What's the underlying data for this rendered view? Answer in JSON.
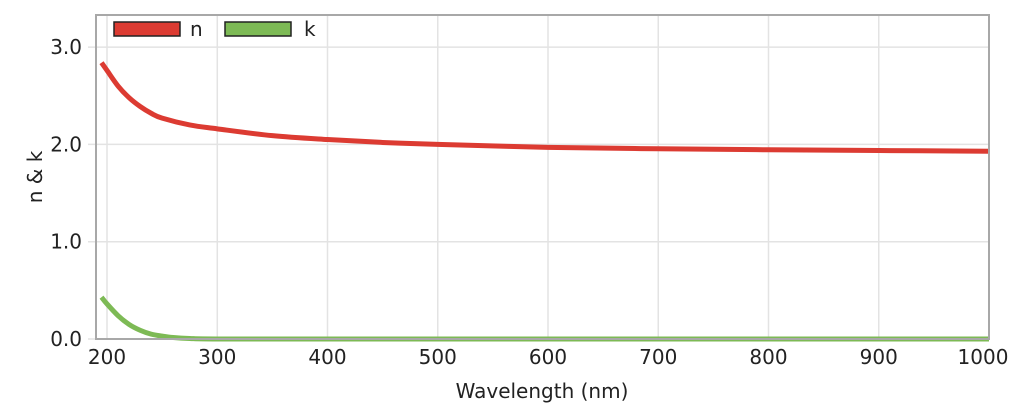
{
  "chart_data": {
    "type": "line",
    "title": "",
    "xlabel": "Wavelength (nm)",
    "ylabel": "n & k",
    "xlim": [
      190,
      1000
    ],
    "ylim": [
      0,
      3.33
    ],
    "xticks": [
      200,
      300,
      400,
      500,
      600,
      700,
      800,
      900,
      1000
    ],
    "xtick_labels": [
      "200",
      "300",
      "400",
      "500",
      "600",
      "700",
      "800",
      "900",
      "1000"
    ],
    "yticks": [
      0,
      1,
      2,
      3
    ],
    "ytick_labels": [
      "0.0",
      "1.0",
      "2.0",
      "3.0"
    ],
    "grid": true,
    "legend_position": "top-left",
    "series": [
      {
        "name": "n",
        "color": "#dc3b32",
        "x": [
          195,
          200,
          210,
          220,
          230,
          240,
          250,
          275,
          300,
          350,
          400,
          450,
          500,
          600,
          700,
          800,
          900,
          1000
        ],
        "y": [
          2.84,
          2.76,
          2.6,
          2.48,
          2.39,
          2.32,
          2.27,
          2.2,
          2.16,
          2.09,
          2.05,
          2.02,
          2.0,
          1.97,
          1.955,
          1.945,
          1.937,
          1.93
        ]
      },
      {
        "name": "k",
        "color": "#7dba55",
        "x": [
          195,
          200,
          210,
          220,
          230,
          240,
          250,
          260,
          275,
          300,
          400,
          600,
          800,
          1000
        ],
        "y": [
          0.43,
          0.36,
          0.24,
          0.15,
          0.09,
          0.05,
          0.03,
          0.015,
          0.005,
          0.0,
          0.0,
          0.0,
          0.0,
          0.0
        ]
      }
    ]
  }
}
